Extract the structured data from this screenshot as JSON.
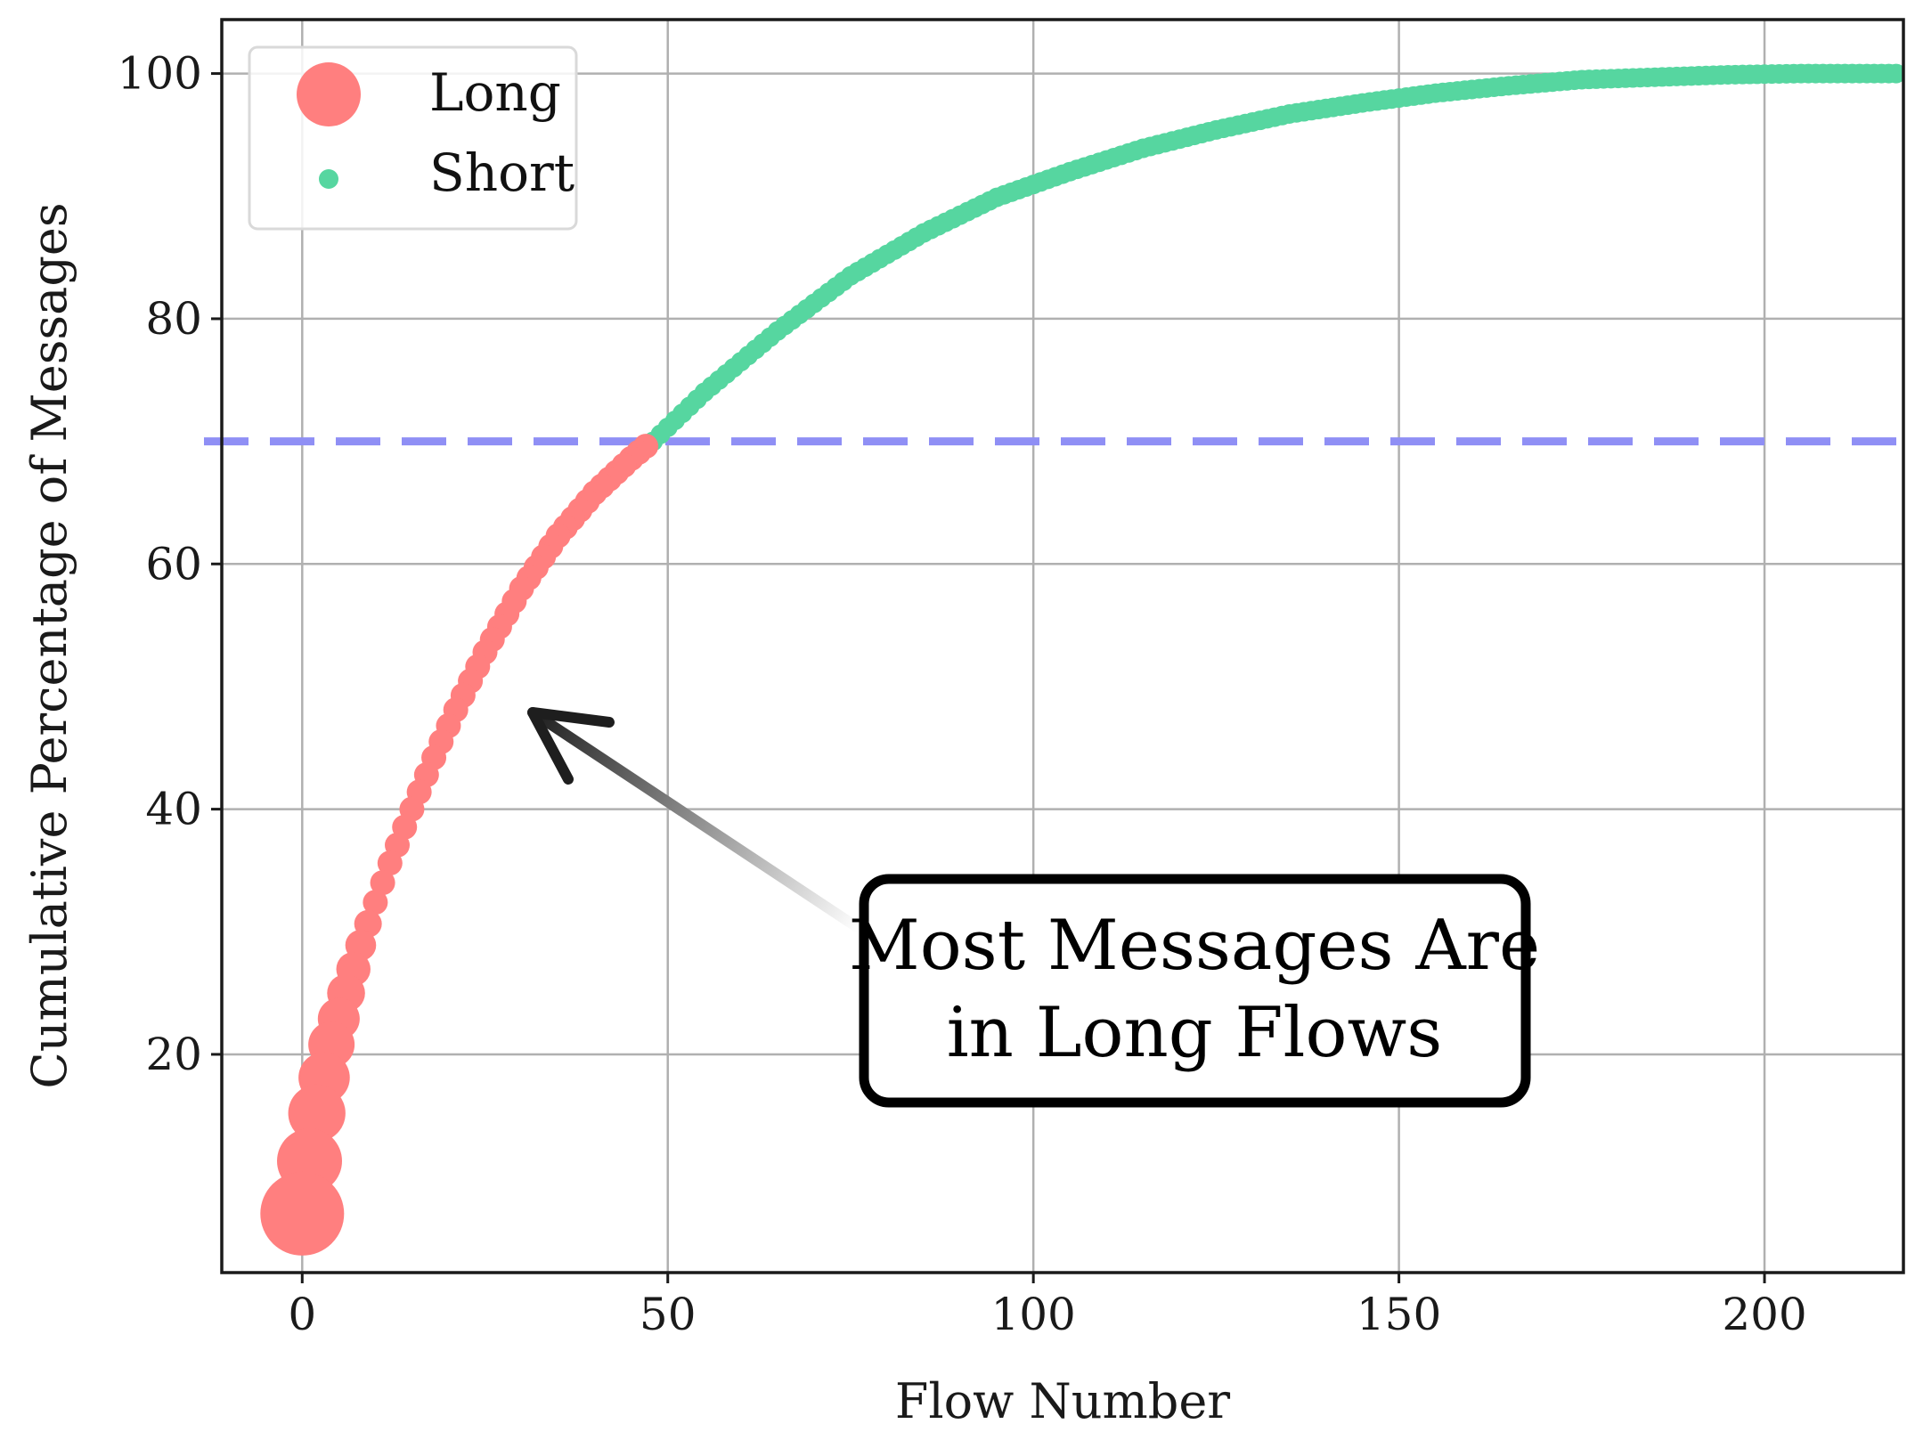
{
  "chart_data": {
    "type": "scatter",
    "xlabel": "Flow Number",
    "ylabel": "Cumulative Percentage of Messages",
    "xlim": [
      -11,
      219
    ],
    "ylim": [
      2.2,
      104.4
    ],
    "xticks": [
      0,
      50,
      100,
      150,
      200
    ],
    "yticks": [
      20,
      40,
      60,
      80,
      100
    ],
    "grid": true,
    "legend": {
      "placement": "top-left"
    },
    "series": [
      {
        "name": "Long",
        "color": "#ff7f7f",
        "x_range": [
          0,
          47
        ],
        "marker_size": "large, decreasing with flow number",
        "points": [
          [
            0,
            7.0
          ],
          [
            1,
            11.3
          ],
          [
            2,
            15.2
          ],
          [
            3,
            18.1
          ],
          [
            4,
            20.8
          ],
          [
            6,
            25.0
          ],
          [
            8,
            28.9
          ],
          [
            10,
            32.4
          ],
          [
            12,
            35.6
          ],
          [
            15,
            40.0
          ],
          [
            18,
            44.2
          ],
          [
            21,
            48.1
          ],
          [
            25,
            52.8
          ],
          [
            30,
            58.0
          ],
          [
            35,
            62.3
          ],
          [
            40,
            65.8
          ],
          [
            45,
            68.6
          ],
          [
            47,
            69.6
          ]
        ]
      },
      {
        "name": "Short",
        "color": "#56d6a0",
        "x_range": [
          48,
          218
        ],
        "marker_size": "small",
        "points": [
          [
            48,
            70.0
          ],
          [
            55,
            74.0
          ],
          [
            65,
            79.0
          ],
          [
            75,
            83.5
          ],
          [
            85,
            87.0
          ],
          [
            95,
            89.9
          ],
          [
            105,
            92.0
          ],
          [
            115,
            93.9
          ],
          [
            125,
            95.4
          ],
          [
            135,
            96.7
          ],
          [
            145,
            97.6
          ],
          [
            155,
            98.4
          ],
          [
            165,
            99.0
          ],
          [
            175,
            99.5
          ],
          [
            185,
            99.7
          ],
          [
            195,
            99.9
          ],
          [
            205,
            100.0
          ],
          [
            218,
            100.0
          ]
        ]
      }
    ],
    "reference_line": {
      "axis": "y",
      "value": 70,
      "style": "dashed",
      "color": "#8f8ff5"
    },
    "annotation": {
      "lines": [
        "Most Messages Are",
        "in Long Flows"
      ],
      "arrow_target": [
        32,
        48.5
      ]
    }
  }
}
